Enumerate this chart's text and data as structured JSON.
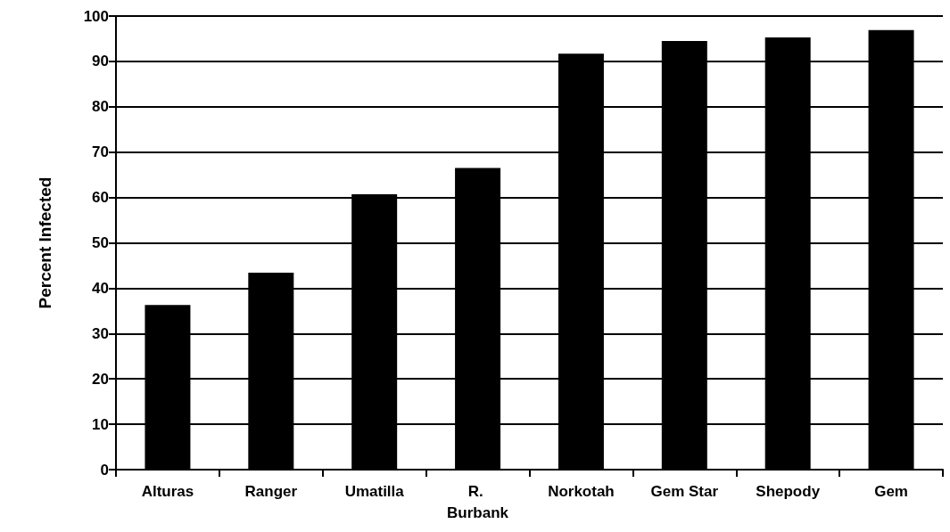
{
  "chart_data": {
    "type": "bar",
    "ylabel": "Percent Infected",
    "categories": [
      "Alturas",
      "Ranger",
      "Umatilla",
      "R. Burbank",
      "Norkotah",
      "Gem Star",
      "Shepody",
      "Gem"
    ],
    "values": [
      36.3,
      43.4,
      60.7,
      66.5,
      91.7,
      94.5,
      95.3,
      96.9
    ],
    "color": "#000000",
    "ylim": [
      0,
      100
    ],
    "yticks": [
      0,
      10,
      20,
      30,
      40,
      50,
      60,
      70,
      80,
      90,
      100
    ],
    "grid": "y"
  }
}
